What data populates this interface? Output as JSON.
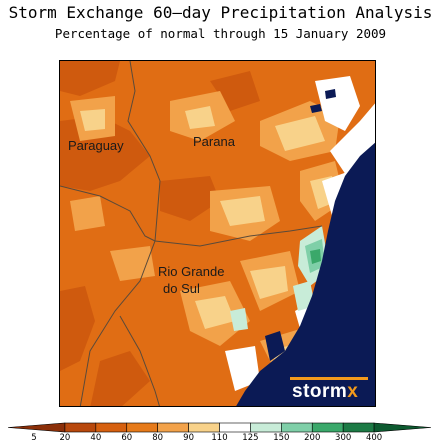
{
  "title": "Storm Exchange 60–day Precipitation Analysis",
  "subtitle": "Percentage of normal through 15 January 2009",
  "map": {
    "regions": [
      {
        "name": "Paraguay"
      },
      {
        "name": "Parana"
      },
      {
        "name": "Rio Grande"
      },
      {
        "name": "do Sul"
      }
    ],
    "logo_text": "storm",
    "logo_accent": "x"
  },
  "legend": {
    "labels": [
      "5",
      "20",
      "40",
      "60",
      "80",
      "90",
      "110",
      "125",
      "150",
      "200",
      "300",
      "400"
    ],
    "colors": [
      "#8b2f08",
      "#b8480c",
      "#d6600f",
      "#e67a1a",
      "#f2a24a",
      "#f8d28a",
      "#ffffff",
      "#c8ecd8",
      "#7fcfa8",
      "#3aa86a",
      "#1c7a45",
      "#0d5a30"
    ],
    "ocean_color": "#0b1a55"
  }
}
